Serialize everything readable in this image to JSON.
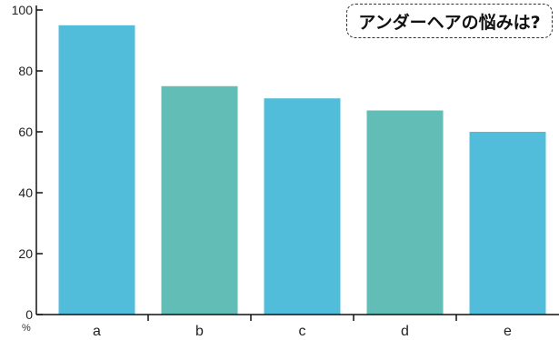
{
  "chart_data": {
    "type": "bar",
    "title": "アンダーヘアの悩みは?",
    "categories": [
      "a",
      "b",
      "c",
      "d",
      "e"
    ],
    "values": [
      95,
      75,
      71,
      67,
      60
    ],
    "bar_colors": [
      "#52bcdb",
      "#62bdb7",
      "#52bcdb",
      "#62bdb7",
      "#52bcdb"
    ],
    "ylim": [
      0,
      100
    ],
    "yticks": [
      0,
      20,
      40,
      60,
      80,
      100
    ],
    "ylabel": "%",
    "xlabel": "",
    "grid": false
  }
}
